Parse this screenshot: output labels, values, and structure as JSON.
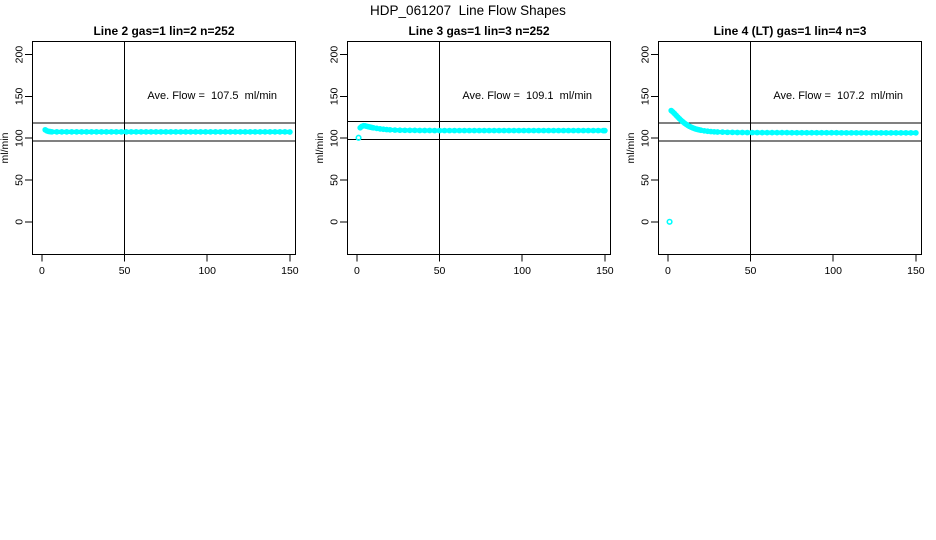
{
  "figure": {
    "title": "HDP_061207  Line Flow Shapes",
    "background_color": "#ffffff",
    "point_color": "#00ffff",
    "axis_color": "#000000"
  },
  "chart_data": [
    {
      "type": "scatter",
      "title": "Line 2 gas=1 lin=2 n=252",
      "annotation": "Ave. Flow =  107.5  ml/min",
      "ave_flow_ml_min": 107.5,
      "n": 252,
      "ylabel": "ml/min",
      "x_ticks": [
        0,
        50,
        100,
        150
      ],
      "y_ticks": [
        0,
        50,
        100,
        150,
        200
      ],
      "x_range": [
        -6,
        153.7
      ],
      "y_range": [
        -39.7,
        216.2
      ],
      "vline_x": 50,
      "ref_lines": [
        118.3,
        96.8
      ],
      "annotation_xy": [
        103,
        151.8
      ],
      "isolated_points": [],
      "points": [
        [
          2,
          110
        ],
        [
          3,
          108.7
        ],
        [
          4,
          108.1
        ],
        [
          5,
          107.8
        ],
        [
          6,
          107.6
        ],
        [
          9,
          107.5
        ],
        [
          12,
          107.5
        ],
        [
          15,
          107.5
        ],
        [
          18,
          107.5
        ],
        [
          21,
          107.5
        ],
        [
          24,
          107.5
        ],
        [
          27,
          107.5
        ],
        [
          30,
          107.5
        ],
        [
          33,
          107.5
        ],
        [
          36,
          107.5
        ],
        [
          39,
          107.5
        ],
        [
          42,
          107.5
        ],
        [
          45,
          107.5
        ],
        [
          48,
          107.5
        ],
        [
          51,
          107.5
        ],
        [
          54,
          107.5
        ],
        [
          57,
          107.5
        ],
        [
          60,
          107.5
        ],
        [
          63,
          107.5
        ],
        [
          66,
          107.5
        ],
        [
          69,
          107.5
        ],
        [
          72,
          107.5
        ],
        [
          75,
          107.5
        ],
        [
          78,
          107.5
        ],
        [
          81,
          107.5
        ],
        [
          84,
          107.5
        ],
        [
          87,
          107.5
        ],
        [
          90,
          107.5
        ],
        [
          93,
          107.5
        ],
        [
          96,
          107.5
        ],
        [
          99,
          107.5
        ],
        [
          102,
          107.5
        ],
        [
          105,
          107.5
        ],
        [
          108,
          107.5
        ],
        [
          111,
          107.5
        ],
        [
          114,
          107.5
        ],
        [
          117,
          107.5
        ],
        [
          120,
          107.5
        ],
        [
          123,
          107.5
        ],
        [
          126,
          107.5
        ],
        [
          129,
          107.5
        ],
        [
          132,
          107.5
        ],
        [
          135,
          107.5
        ],
        [
          138,
          107.5
        ],
        [
          141,
          107.5
        ],
        [
          144,
          107.5
        ],
        [
          147,
          107.5
        ],
        [
          150,
          107.4
        ]
      ]
    },
    {
      "type": "scatter",
      "title": "Line 3 gas=1 lin=3 n=252",
      "annotation": "Ave. Flow =  109.1  ml/min",
      "ave_flow_ml_min": 109.1,
      "n": 252,
      "ylabel": "ml/min",
      "x_ticks": [
        0,
        50,
        100,
        150
      ],
      "y_ticks": [
        0,
        50,
        100,
        150,
        200
      ],
      "x_range": [
        -6,
        153.7
      ],
      "y_range": [
        -39.7,
        216.2
      ],
      "vline_x": 50,
      "ref_lines": [
        120.0,
        98.2
      ],
      "annotation_xy": [
        103,
        151.8
      ],
      "isolated_points": [
        [
          1,
          100.5
        ]
      ],
      "points": [
        [
          2,
          112.5
        ],
        [
          3,
          114.2
        ],
        [
          4,
          114.9
        ],
        [
          5,
          114.7
        ],
        [
          6,
          114.2
        ],
        [
          7,
          113.7
        ],
        [
          8,
          113.2
        ],
        [
          9,
          112.8
        ],
        [
          10,
          112.4
        ],
        [
          12,
          111.7
        ],
        [
          14,
          111.1
        ],
        [
          16,
          110.7
        ],
        [
          18,
          110.3
        ],
        [
          20,
          110
        ],
        [
          23,
          109.7
        ],
        [
          26,
          109.5
        ],
        [
          29,
          109.4
        ],
        [
          32,
          109.3
        ],
        [
          35,
          109.3
        ],
        [
          38,
          109.2
        ],
        [
          41,
          109.2
        ],
        [
          44,
          109.2
        ],
        [
          47,
          109.1
        ],
        [
          50,
          109.1
        ],
        [
          53,
          109.1
        ],
        [
          56,
          109.1
        ],
        [
          59,
          109.1
        ],
        [
          62,
          109.1
        ],
        [
          65,
          109.1
        ],
        [
          68,
          109.1
        ],
        [
          71,
          109.1
        ],
        [
          74,
          109.1
        ],
        [
          77,
          109.1
        ],
        [
          80,
          109.1
        ],
        [
          83,
          109.1
        ],
        [
          86,
          109.1
        ],
        [
          89,
          109.1
        ],
        [
          92,
          109.1
        ],
        [
          95,
          109.1
        ],
        [
          98,
          109.1
        ],
        [
          101,
          109.1
        ],
        [
          104,
          109.1
        ],
        [
          107,
          109.1
        ],
        [
          110,
          109.1
        ],
        [
          113,
          109.1
        ],
        [
          116,
          109.1
        ],
        [
          119,
          109.1
        ],
        [
          122,
          109.1
        ],
        [
          125,
          109.1
        ],
        [
          128,
          109.1
        ],
        [
          131,
          109.1
        ],
        [
          134,
          109.1
        ],
        [
          137,
          109.1
        ],
        [
          140,
          109.1
        ],
        [
          143,
          109.1
        ],
        [
          146,
          109.1
        ],
        [
          149,
          109
        ],
        [
          150,
          109
        ]
      ]
    },
    {
      "type": "scatter",
      "title": "Line 4 (LT) gas=1 lin=4 n=3",
      "annotation": "Ave. Flow =  107.2  ml/min",
      "ave_flow_ml_min": 107.2,
      "n": 3,
      "ylabel": "ml/min",
      "x_ticks": [
        0,
        50,
        100,
        150
      ],
      "y_ticks": [
        0,
        50,
        100,
        150,
        200
      ],
      "x_range": [
        -6,
        153.7
      ],
      "y_range": [
        -39.7,
        216.2
      ],
      "vline_x": 50,
      "ref_lines": [
        117.9,
        96.5
      ],
      "annotation_xy": [
        103,
        151.8
      ],
      "isolated_points": [
        [
          1,
          0
        ]
      ],
      "points": [
        [
          2,
          133
        ],
        [
          3,
          131.3
        ],
        [
          4,
          129.4
        ],
        [
          5,
          127.3
        ],
        [
          6,
          125.2
        ],
        [
          7,
          123.2
        ],
        [
          8,
          121.3
        ],
        [
          9,
          119.6
        ],
        [
          10,
          118
        ],
        [
          11,
          116.6
        ],
        [
          12,
          115.3
        ],
        [
          13,
          114.2
        ],
        [
          14,
          113.2
        ],
        [
          15,
          112.3
        ],
        [
          16,
          111.6
        ],
        [
          17,
          110.9
        ],
        [
          18,
          110.4
        ],
        [
          19,
          109.9
        ],
        [
          20,
          109.5
        ],
        [
          22,
          108.8
        ],
        [
          24,
          108.3
        ],
        [
          26,
          107.9
        ],
        [
          28,
          107.6
        ],
        [
          30,
          107.4
        ],
        [
          33,
          107.2
        ],
        [
          36,
          107
        ],
        [
          39,
          106.9
        ],
        [
          42,
          106.8
        ],
        [
          45,
          106.8
        ],
        [
          48,
          106.7
        ],
        [
          51,
          106.7
        ],
        [
          54,
          106.7
        ],
        [
          57,
          106.6
        ],
        [
          60,
          106.6
        ],
        [
          63,
          106.6
        ],
        [
          66,
          106.6
        ],
        [
          69,
          106.6
        ],
        [
          72,
          106.6
        ],
        [
          75,
          106.5
        ],
        [
          78,
          106.5
        ],
        [
          81,
          106.5
        ],
        [
          84,
          106.5
        ],
        [
          87,
          106.5
        ],
        [
          90,
          106.5
        ],
        [
          93,
          106.5
        ],
        [
          96,
          106.5
        ],
        [
          99,
          106.5
        ],
        [
          102,
          106.5
        ],
        [
          105,
          106.4
        ],
        [
          108,
          106.4
        ],
        [
          111,
          106.4
        ],
        [
          114,
          106.4
        ],
        [
          117,
          106.4
        ],
        [
          120,
          106.4
        ],
        [
          123,
          106.4
        ],
        [
          126,
          106.4
        ],
        [
          129,
          106.3
        ],
        [
          132,
          106.3
        ],
        [
          135,
          106.3
        ],
        [
          138,
          106.3
        ],
        [
          141,
          106.3
        ],
        [
          144,
          106.3
        ],
        [
          147,
          106.3
        ],
        [
          150,
          106.3
        ]
      ]
    }
  ]
}
